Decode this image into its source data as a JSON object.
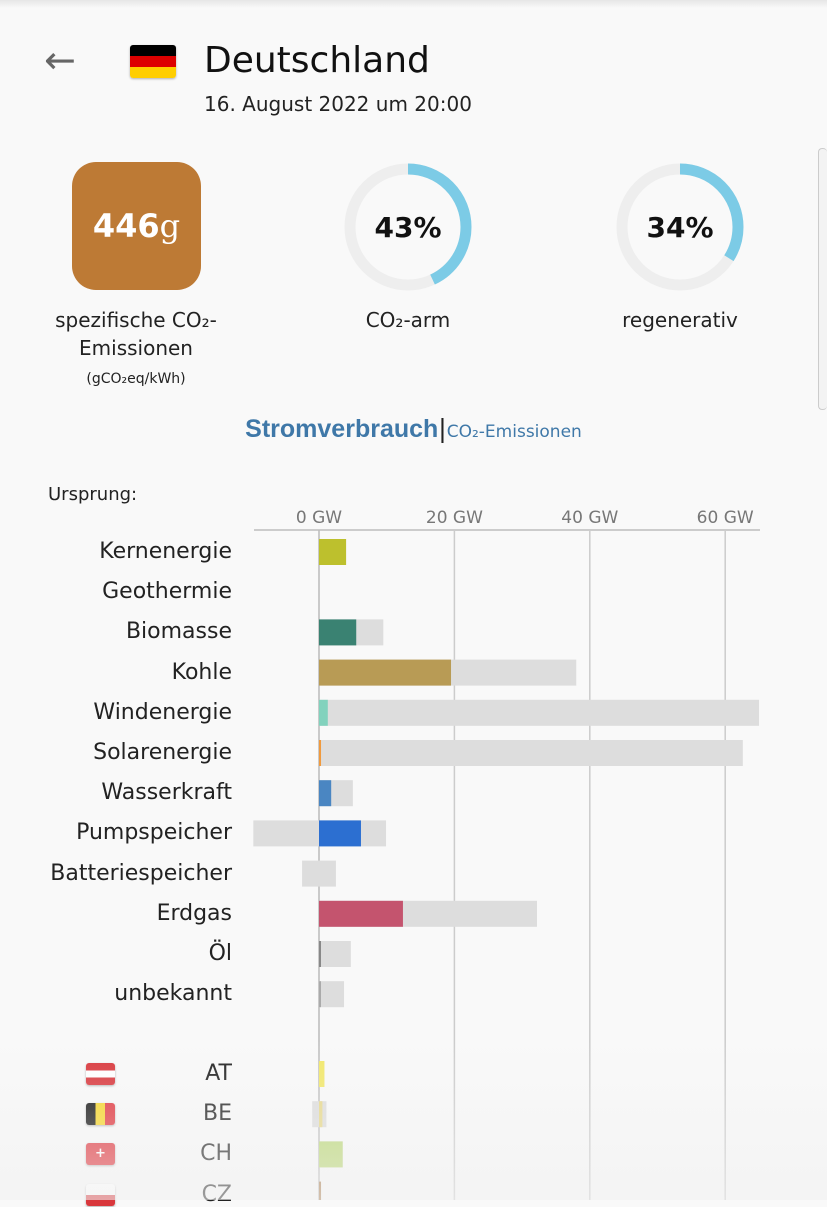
{
  "header": {
    "back_icon": "arrow-left-icon",
    "country": "Deutschland",
    "datetime": "16. August 2022 um 20:00"
  },
  "stats": {
    "intensity_value": "446",
    "intensity_unit": "g",
    "intensity_color": "#bd7a35",
    "intensity_label_1": "spezifische CO₂-",
    "intensity_label_2": "Emissionen",
    "intensity_unit_label": "(gCO₂eq/kWh)",
    "low_carbon_pct": 43,
    "low_carbon_text": "43%",
    "low_carbon_label": "CO₂-arm",
    "renewable_pct": 34,
    "renewable_text": "34%",
    "renewable_label": "regenerativ",
    "ring_color": "#7ccbe6"
  },
  "tabs": {
    "active": "Stromverbrauch",
    "separator": "|",
    "other": "CO₂-Emissionen"
  },
  "origin_label": "Ursprung:",
  "chart_data": {
    "type": "bar",
    "unit": "GW",
    "xticks": [
      {
        "v": 0,
        "label": "0 GW"
      },
      {
        "v": 20,
        "label": "20 GW"
      },
      {
        "v": 40,
        "label": "40 GW"
      },
      {
        "v": 60,
        "label": "60 GW"
      }
    ],
    "sources": [
      {
        "name": "Kernenergie",
        "value": 4.0,
        "cap_min": 0,
        "cap_max": 4.0,
        "color": "#bdc02d"
      },
      {
        "name": "Geothermie",
        "value": 0,
        "cap_min": 0,
        "cap_max": 0,
        "color": "#b33"
      },
      {
        "name": "Biomasse",
        "value": 5.5,
        "cap_min": 0,
        "cap_max": 9.5,
        "color": "#3a8272"
      },
      {
        "name": "Kohle",
        "value": 19.5,
        "cap_min": 0,
        "cap_max": 38,
        "color": "#b89b55"
      },
      {
        "name": "Windenergie",
        "value": 1.3,
        "cap_min": 0,
        "cap_max": 65,
        "color": "#82d2bd"
      },
      {
        "name": "Solarenergie",
        "value": 0.3,
        "cap_min": 0,
        "cap_max": 62.6,
        "color": "#f09a3e"
      },
      {
        "name": "Wasserkraft",
        "value": 1.8,
        "cap_min": 0,
        "cap_max": 5,
        "color": "#4a86c2"
      },
      {
        "name": "Pumpspeicher",
        "value": 6.2,
        "cap_min": -9.7,
        "cap_max": 9.9,
        "color": "#2c6fd1"
      },
      {
        "name": "Batteriespeicher",
        "value": 0,
        "cap_min": -2.5,
        "cap_max": 2.5,
        "color": "#888"
      },
      {
        "name": "Erdgas",
        "value": 12.4,
        "cap_min": 0,
        "cap_max": 32.2,
        "color": "#c4546e"
      },
      {
        "name": "Öl",
        "value": 0.2,
        "cap_min": 0,
        "cap_max": 4.7,
        "color": "#888"
      },
      {
        "name": "unbekannt",
        "value": 0.2,
        "cap_min": 0,
        "cap_max": 3.7,
        "color": "#aaa"
      }
    ],
    "exchanges": [
      {
        "name": "AT",
        "value": 0.8,
        "cap_min": 0,
        "cap_max": 0.8,
        "color": "#f2e86a"
      },
      {
        "name": "BE",
        "value": 0.5,
        "cap_min": -1,
        "cap_max": 1.1,
        "color": "#e8d98a"
      },
      {
        "name": "CH",
        "value": 3.5,
        "cap_min": 0,
        "cap_max": 3.5,
        "color": "#bcd877"
      },
      {
        "name": "CZ",
        "value": 0.3,
        "cap_min": 0,
        "cap_max": 0.3,
        "color": "#a87a4a"
      }
    ]
  }
}
